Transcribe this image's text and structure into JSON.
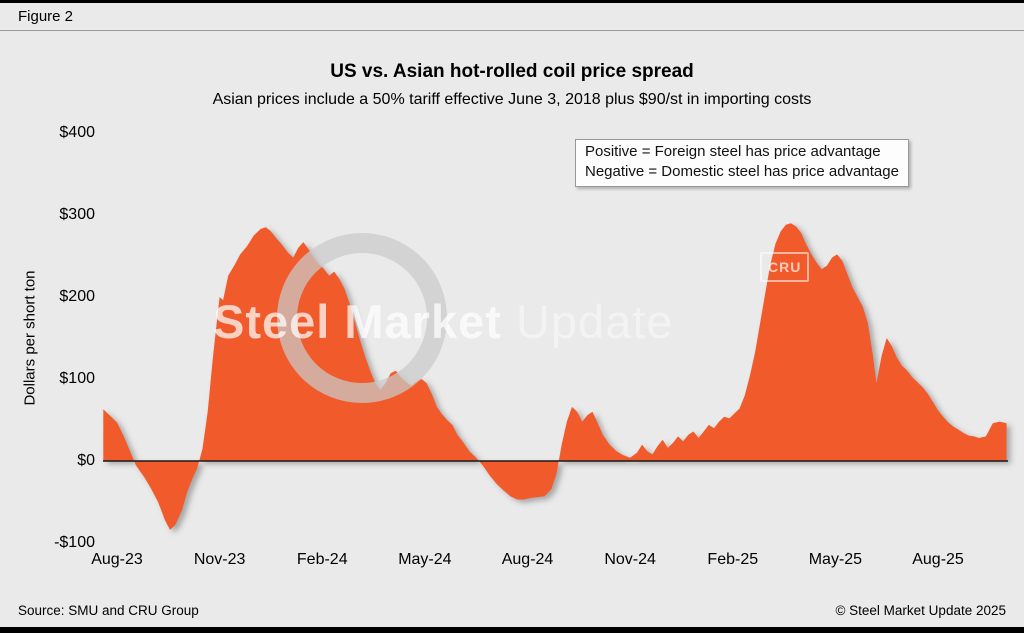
{
  "figure_label": "Figure 2",
  "title": "US vs. Asian hot-rolled coil price spread",
  "subtitle": "Asian prices include a 50% tariff effective June 3, 2018 plus $90/st in importing costs",
  "annotation": {
    "line1": "Positive = Foreign steel has price advantage",
    "line2": "Negative = Domestic steel has price advantage"
  },
  "watermark": {
    "bold": "Steel Market ",
    "light": "Update",
    "badge": "CRU"
  },
  "footer": {
    "source": "Source: SMU and CRU Group",
    "copyright": "© Steel Market Update 2025"
  },
  "colors": {
    "area": "#F15A29",
    "background": "#EAEAEA",
    "axis": "#1A1A1A"
  },
  "chart_data": {
    "type": "area",
    "title": "US vs. Asian hot-rolled coil price spread",
    "subtitle": "Asian prices include a 50% tariff effective June 3, 2018 plus $90/st in importing costs",
    "xlabel": "",
    "ylabel": "Dollars per short ton",
    "ylim": [
      -100,
      400
    ],
    "yticks": [
      400,
      300,
      200,
      100,
      0,
      -100
    ],
    "ytick_labels": [
      "$400",
      "$300",
      "$200",
      "$100",
      "$0",
      "-$100"
    ],
    "xticks_months": [
      0,
      3,
      6,
      9,
      12,
      15,
      18,
      21,
      24
    ],
    "xtick_labels": [
      "Aug-23",
      "Nov-23",
      "Feb-24",
      "May-24",
      "Aug-24",
      "Nov-24",
      "Feb-25",
      "May-25",
      "Aug-25"
    ],
    "x_unit": "months since Aug-2023 (weekly spread values, $/short ton)",
    "grid": false,
    "legend_position": "top-right note box",
    "points": [
      [
        -0.4,
        63
      ],
      [
        -0.2,
        55
      ],
      [
        0,
        47
      ],
      [
        0.2,
        30
      ],
      [
        0.4,
        10
      ],
      [
        0.55,
        -5
      ],
      [
        0.8,
        -20
      ],
      [
        1,
        -34
      ],
      [
        1.2,
        -50
      ],
      [
        1.4,
        -72
      ],
      [
        1.55,
        -84
      ],
      [
        1.7,
        -78
      ],
      [
        1.9,
        -60
      ],
      [
        2.05,
        -38
      ],
      [
        2.2,
        -22
      ],
      [
        2.35,
        -8
      ],
      [
        2.5,
        15
      ],
      [
        2.65,
        60
      ],
      [
        2.8,
        125
      ],
      [
        3,
        200
      ],
      [
        3.1,
        196
      ],
      [
        3.25,
        226
      ],
      [
        3.45,
        240
      ],
      [
        3.6,
        252
      ],
      [
        3.8,
        262
      ],
      [
        4,
        275
      ],
      [
        4.2,
        283
      ],
      [
        4.35,
        285
      ],
      [
        4.5,
        280
      ],
      [
        4.65,
        272
      ],
      [
        4.8,
        265
      ],
      [
        5,
        254
      ],
      [
        5.15,
        248
      ],
      [
        5.3,
        260
      ],
      [
        5.45,
        267
      ],
      [
        5.6,
        258
      ],
      [
        5.75,
        248
      ],
      [
        5.9,
        240
      ],
      [
        6.05,
        234
      ],
      [
        6.2,
        226
      ],
      [
        6.35,
        231
      ],
      [
        6.5,
        222
      ],
      [
        6.65,
        210
      ],
      [
        6.8,
        192
      ],
      [
        6.95,
        170
      ],
      [
        7.1,
        148
      ],
      [
        7.25,
        128
      ],
      [
        7.4,
        110
      ],
      [
        7.55,
        95
      ],
      [
        7.7,
        87
      ],
      [
        7.85,
        95
      ],
      [
        8,
        107
      ],
      [
        8.15,
        110
      ],
      [
        8.3,
        102
      ],
      [
        8.45,
        96
      ],
      [
        8.6,
        92
      ],
      [
        8.75,
        97
      ],
      [
        8.9,
        100
      ],
      [
        9.05,
        95
      ],
      [
        9.2,
        82
      ],
      [
        9.35,
        66
      ],
      [
        9.5,
        57
      ],
      [
        9.65,
        50
      ],
      [
        9.8,
        44
      ],
      [
        9.95,
        32
      ],
      [
        10.1,
        24
      ],
      [
        10.3,
        12
      ],
      [
        10.5,
        4
      ],
      [
        10.7,
        -6
      ],
      [
        10.9,
        -18
      ],
      [
        11.1,
        -28
      ],
      [
        11.3,
        -36
      ],
      [
        11.5,
        -43
      ],
      [
        11.7,
        -47
      ],
      [
        11.9,
        -47
      ],
      [
        12.1,
        -45
      ],
      [
        12.3,
        -44
      ],
      [
        12.5,
        -43
      ],
      [
        12.7,
        -34
      ],
      [
        12.85,
        -15
      ],
      [
        13,
        20
      ],
      [
        13.15,
        48
      ],
      [
        13.3,
        66
      ],
      [
        13.45,
        60
      ],
      [
        13.6,
        48
      ],
      [
        13.75,
        56
      ],
      [
        13.9,
        60
      ],
      [
        14.05,
        46
      ],
      [
        14.2,
        32
      ],
      [
        14.4,
        20
      ],
      [
        14.6,
        12
      ],
      [
        14.8,
        7
      ],
      [
        15,
        4
      ],
      [
        15.2,
        10
      ],
      [
        15.35,
        20
      ],
      [
        15.5,
        12
      ],
      [
        15.65,
        8
      ],
      [
        15.8,
        18
      ],
      [
        15.95,
        26
      ],
      [
        16.1,
        16
      ],
      [
        16.25,
        22
      ],
      [
        16.4,
        30
      ],
      [
        16.55,
        24
      ],
      [
        16.7,
        32
      ],
      [
        16.85,
        36
      ],
      [
        17,
        28
      ],
      [
        17.15,
        36
      ],
      [
        17.3,
        44
      ],
      [
        17.45,
        40
      ],
      [
        17.6,
        48
      ],
      [
        17.75,
        54
      ],
      [
        17.9,
        52
      ],
      [
        18.05,
        58
      ],
      [
        18.2,
        64
      ],
      [
        18.35,
        80
      ],
      [
        18.5,
        104
      ],
      [
        18.65,
        132
      ],
      [
        18.8,
        168
      ],
      [
        18.95,
        205
      ],
      [
        19.1,
        240
      ],
      [
        19.25,
        265
      ],
      [
        19.4,
        280
      ],
      [
        19.55,
        288
      ],
      [
        19.7,
        290
      ],
      [
        19.85,
        286
      ],
      [
        20,
        278
      ],
      [
        20.15,
        264
      ],
      [
        20.3,
        252
      ],
      [
        20.45,
        242
      ],
      [
        20.6,
        234
      ],
      [
        20.75,
        238
      ],
      [
        20.9,
        248
      ],
      [
        21.05,
        252
      ],
      [
        21.2,
        244
      ],
      [
        21.35,
        228
      ],
      [
        21.5,
        212
      ],
      [
        21.65,
        200
      ],
      [
        21.8,
        188
      ],
      [
        21.95,
        168
      ],
      [
        22.1,
        128
      ],
      [
        22.2,
        95
      ],
      [
        22.35,
        128
      ],
      [
        22.5,
        150
      ],
      [
        22.65,
        140
      ],
      [
        22.8,
        126
      ],
      [
        22.95,
        116
      ],
      [
        23.1,
        110
      ],
      [
        23.25,
        102
      ],
      [
        23.4,
        96
      ],
      [
        23.55,
        90
      ],
      [
        23.7,
        82
      ],
      [
        23.85,
        72
      ],
      [
        24,
        62
      ],
      [
        24.15,
        54
      ],
      [
        24.3,
        47
      ],
      [
        24.45,
        42
      ],
      [
        24.6,
        38
      ],
      [
        24.75,
        34
      ],
      [
        24.9,
        31
      ],
      [
        25.05,
        30
      ],
      [
        25.2,
        28
      ],
      [
        25.4,
        30
      ],
      [
        25.6,
        46
      ],
      [
        25.8,
        48
      ],
      [
        26,
        46
      ]
    ]
  }
}
